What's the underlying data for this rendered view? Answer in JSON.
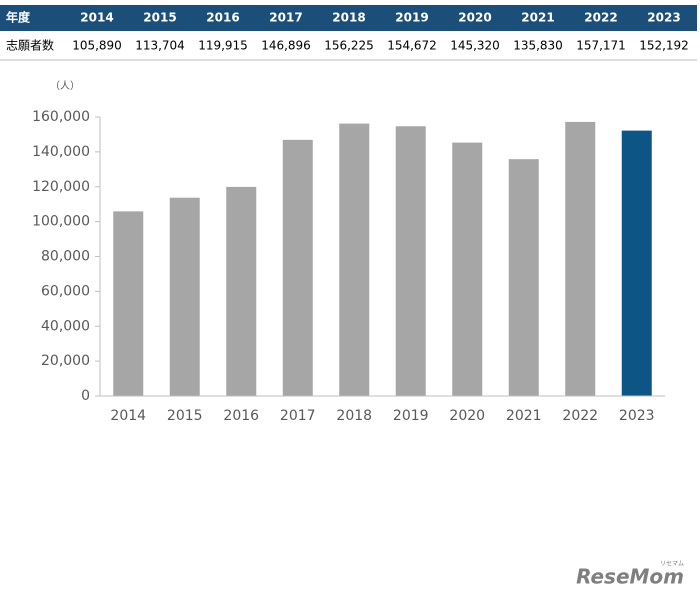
{
  "table": {
    "header": [
      "年度",
      "2014",
      "2015",
      "2016",
      "2017",
      "2018",
      "2019",
      "2020",
      "2021",
      "2022",
      "2023"
    ],
    "rows": [
      [
        "志願者数",
        "105,890",
        "113,704",
        "119,915",
        "146,896",
        "156,225",
        "154,672",
        "145,320",
        "135,830",
        "157,171",
        "152,192"
      ]
    ]
  },
  "chart_data": {
    "type": "bar",
    "y_label": "（人）",
    "categories": [
      "2014",
      "2015",
      "2016",
      "2017",
      "2018",
      "2019",
      "2020",
      "2021",
      "2022",
      "2023"
    ],
    "values": [
      105890,
      113704,
      119915,
      146896,
      156225,
      154672,
      145320,
      135830,
      157171,
      152192
    ],
    "colors": [
      "#a6a6a6",
      "#a6a6a6",
      "#a6a6a6",
      "#a6a6a6",
      "#a6a6a6",
      "#a6a6a6",
      "#a6a6a6",
      "#a6a6a6",
      "#a6a6a6",
      "#0d5584"
    ],
    "ylim": [
      0,
      160000
    ],
    "yticks": [
      0,
      {
        "value": 20000,
        "label": "20,000"
      },
      {
        "value": 40000,
        "label": "40,000"
      },
      {
        "value": 60000,
        "label": "60,000"
      },
      {
        "value": 80000,
        "label": "80,000"
      },
      {
        "value": 100000,
        "label": "100,000"
      },
      {
        "value": 120000,
        "label": "120,000"
      },
      {
        "value": 140000,
        "label": "140,000"
      },
      {
        "value": 160000,
        "label": "160,000"
      }
    ],
    "grid": false
  },
  "watermark": {
    "text": "ReseMom",
    "ruby": "リセマム"
  }
}
